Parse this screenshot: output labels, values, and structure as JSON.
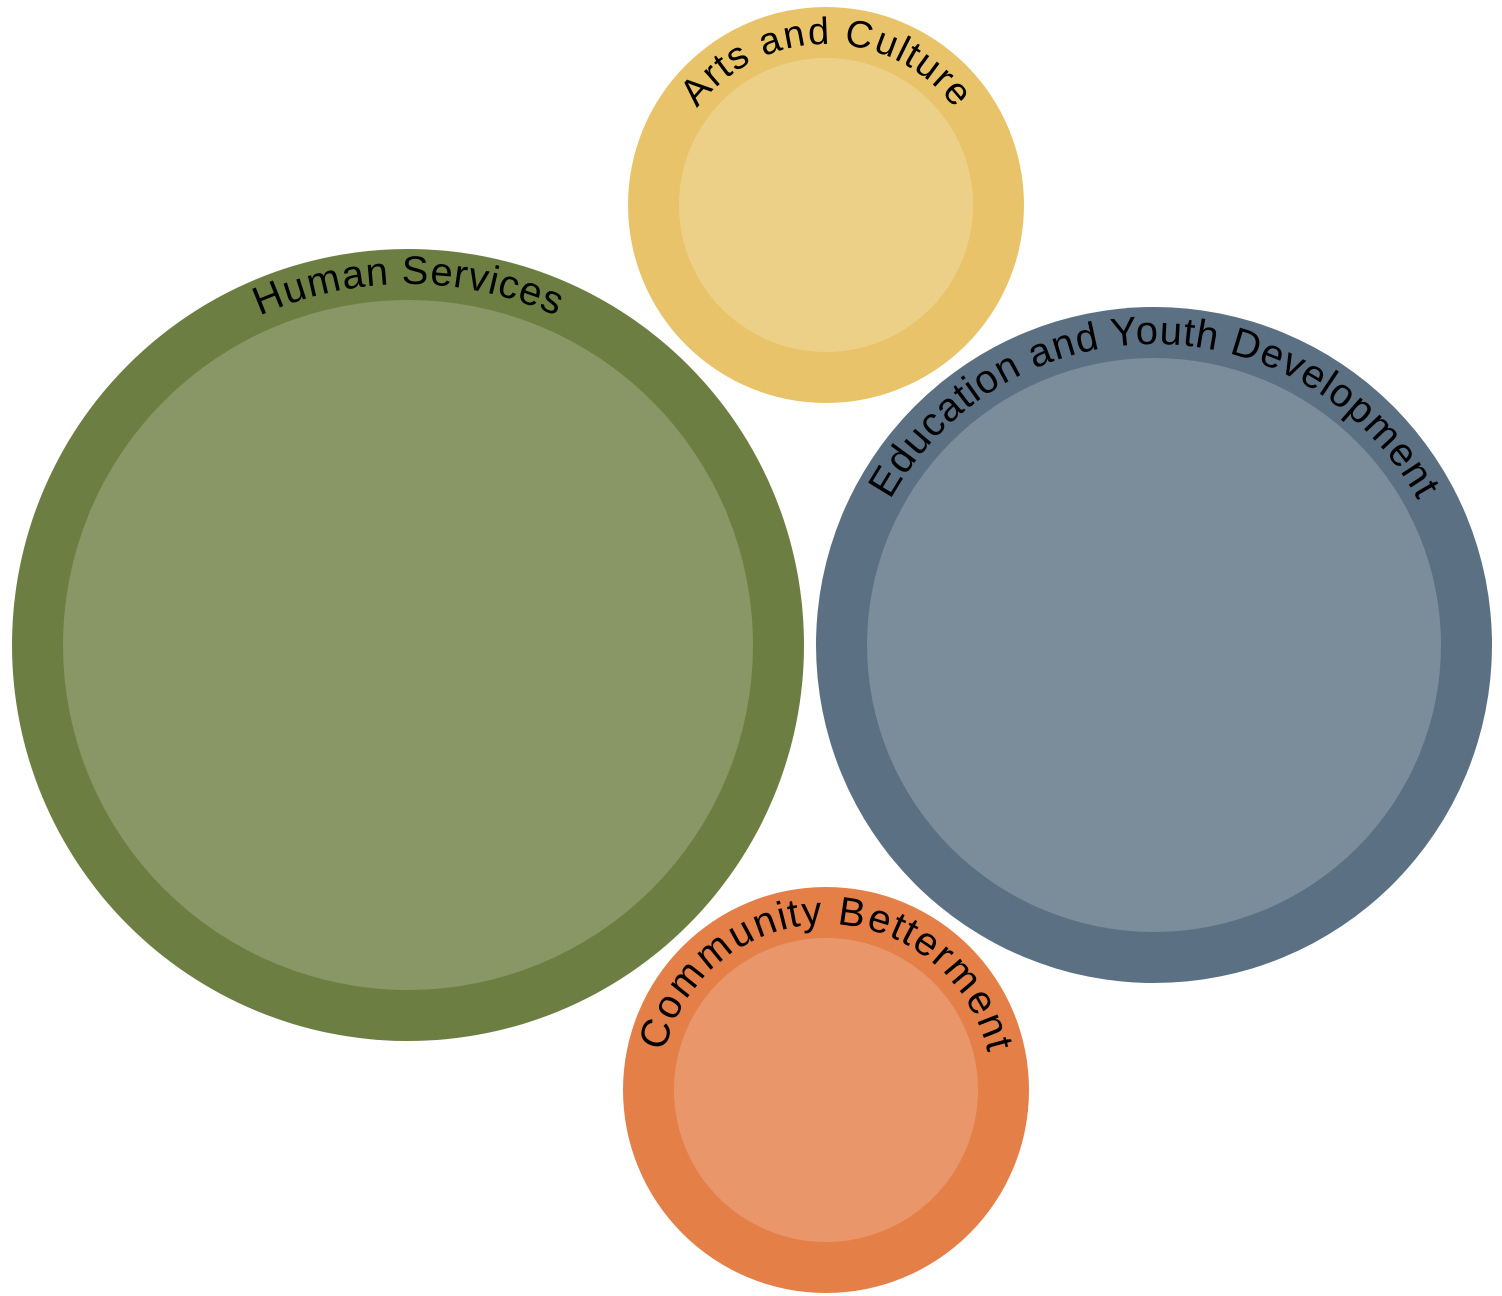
{
  "diagram": {
    "circles": [
      {
        "id": "arts-and-culture",
        "label": "Arts and Culture",
        "outer_color": "#E8C36A",
        "inner_color": "#EDD088"
      },
      {
        "id": "human-services",
        "label": "Human Services",
        "outer_color": "#6D7E42",
        "inner_color": "#889765"
      },
      {
        "id": "education-and-youth-development",
        "label": "Education and Youth Development",
        "outer_color": "#5B7083",
        "inner_color": "#7B8C9A"
      },
      {
        "id": "community-betterment",
        "label": "Community Betterment",
        "outer_color": "#E47F48",
        "inner_color": "#E9976A"
      }
    ]
  }
}
